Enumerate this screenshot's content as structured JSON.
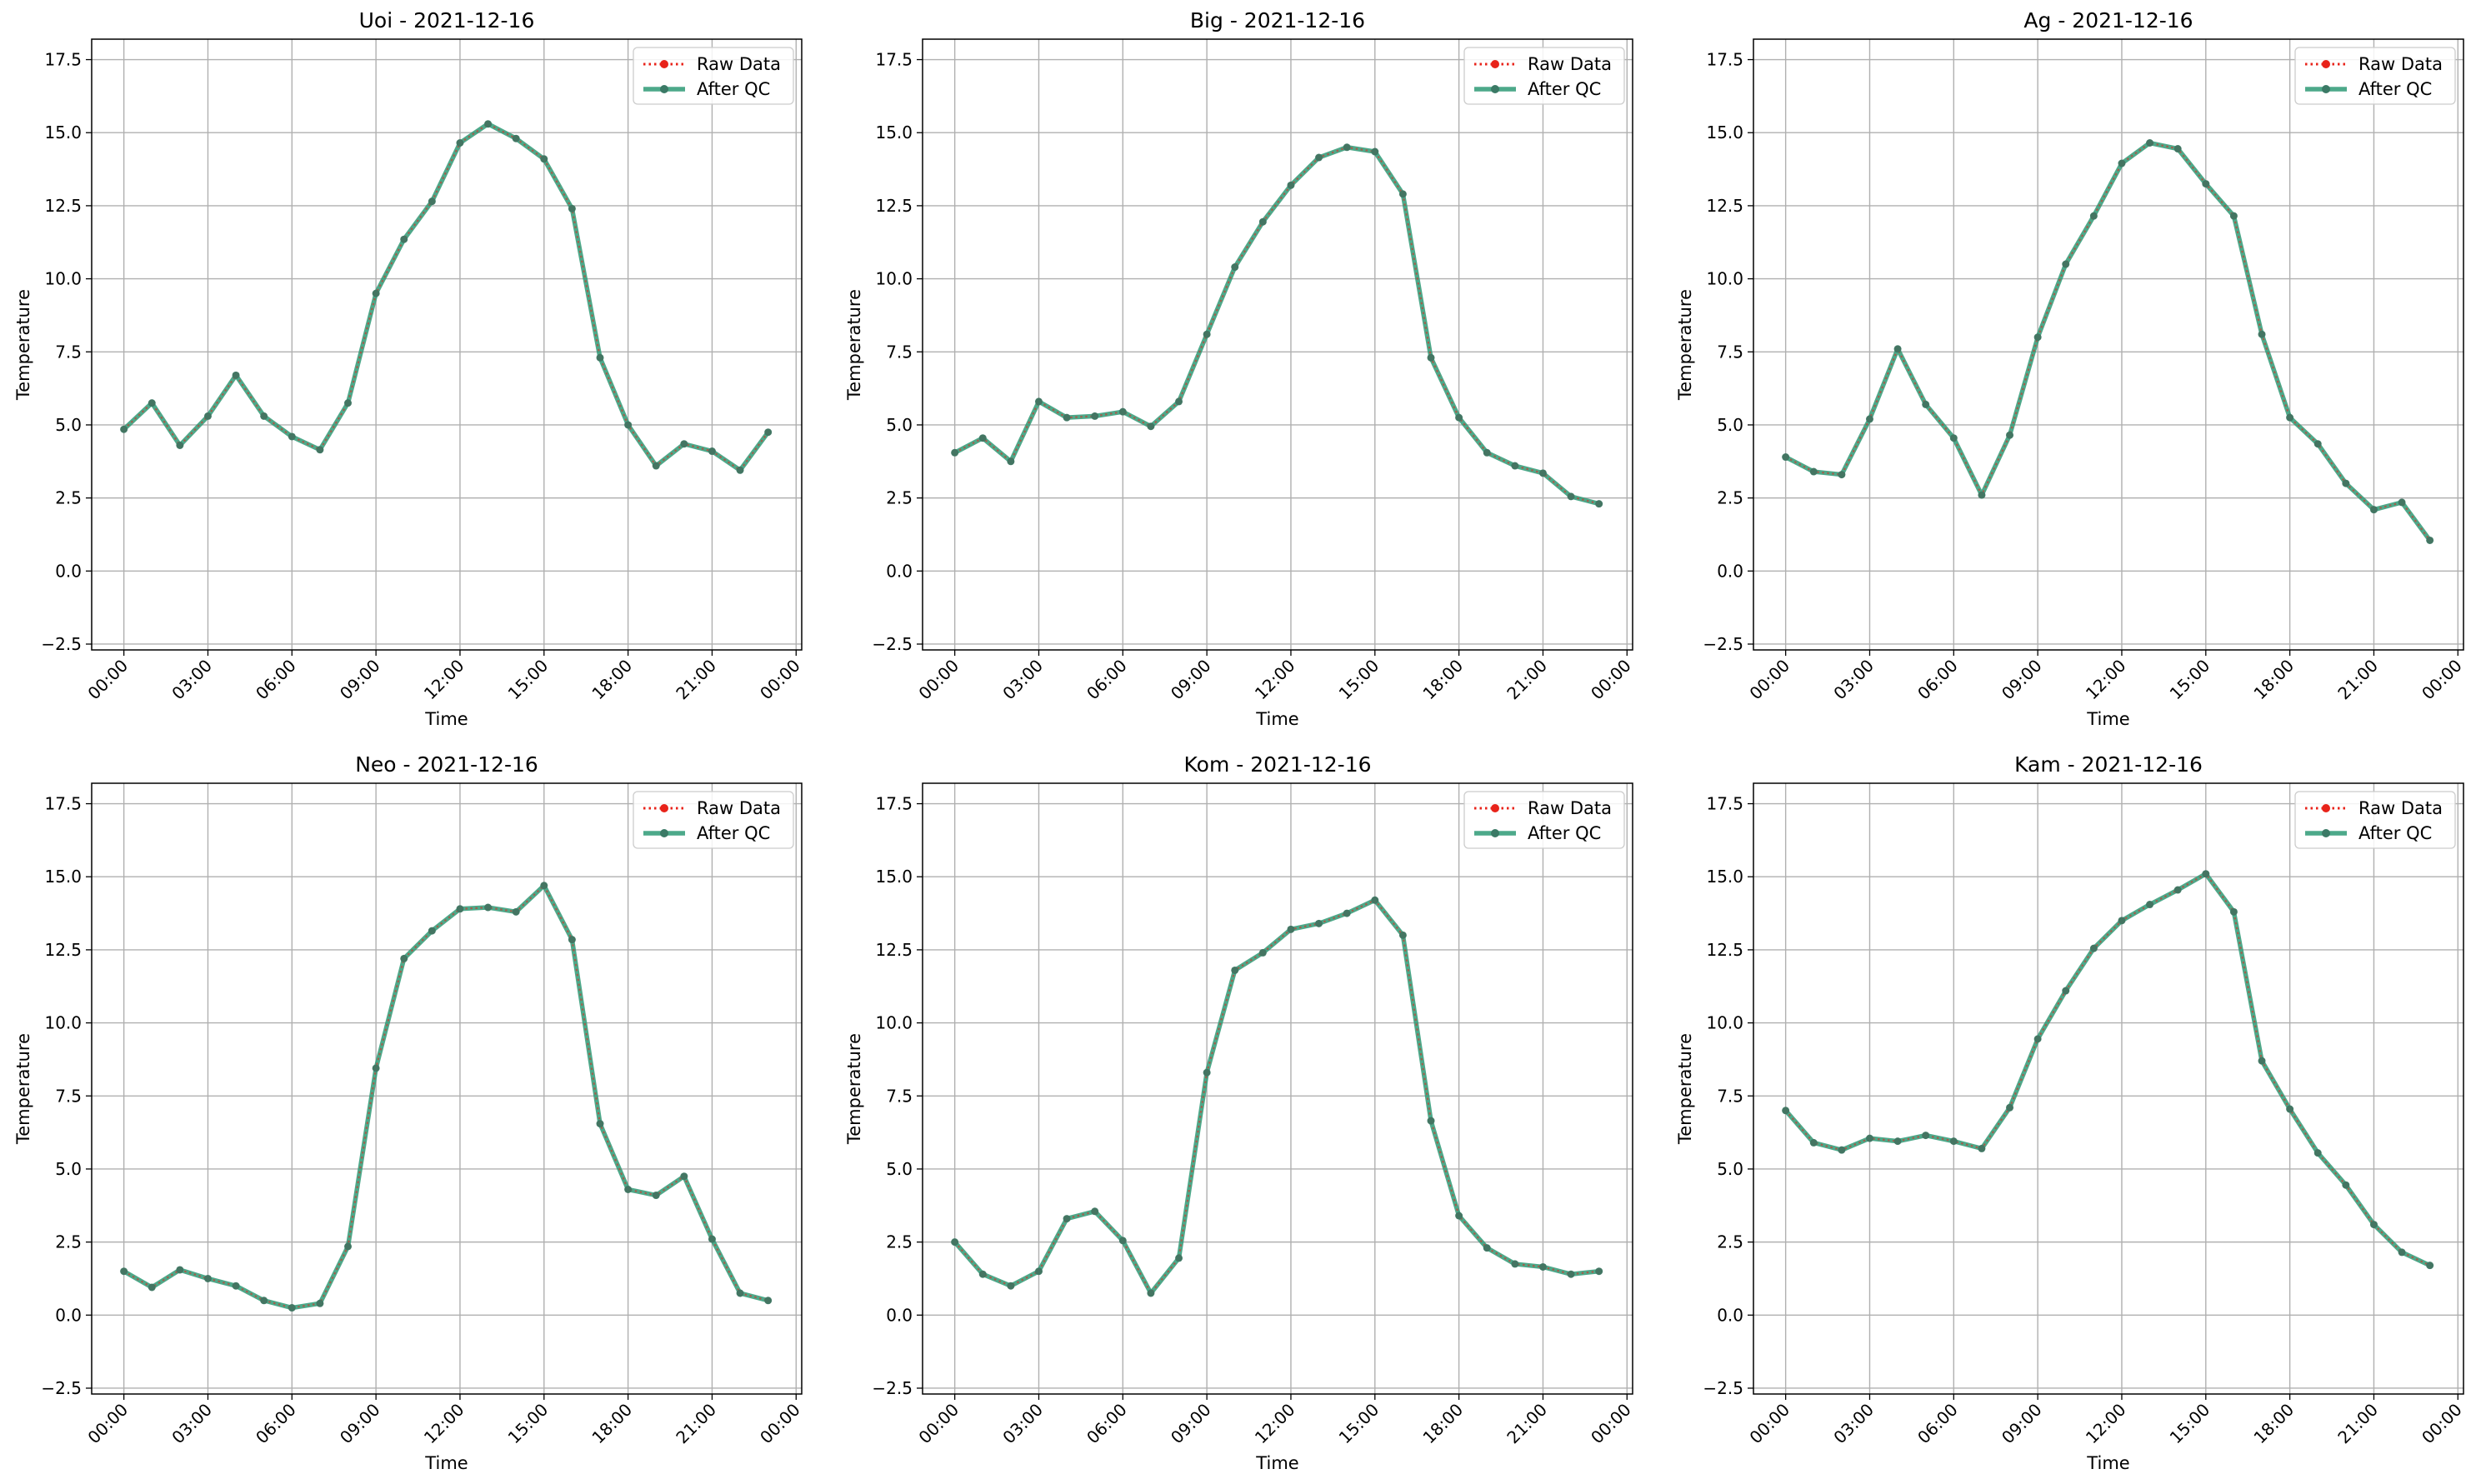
{
  "legend": {
    "raw": "Raw Data",
    "qc": "After QC"
  },
  "colors": {
    "raw": "#e8231a",
    "qc": "#2e9a76",
    "grid": "#b0b0b0"
  },
  "chart_data": [
    {
      "type": "line",
      "title": "Uoi - 2021-12-16",
      "xlabel": "Time",
      "ylabel": "Temperature",
      "ylim": [
        -2.5,
        17.5
      ],
      "xlim": [
        "00:00",
        "00:00"
      ],
      "xticks": [
        "00:00",
        "03:00",
        "06:00",
        "09:00",
        "12:00",
        "15:00",
        "18:00",
        "21:00",
        "00:00"
      ],
      "yticks": [
        -2.5,
        0.0,
        2.5,
        5.0,
        7.5,
        10.0,
        12.5,
        15.0,
        17.5
      ],
      "x": [
        "00:00",
        "01:00",
        "02:00",
        "03:00",
        "04:00",
        "05:00",
        "06:00",
        "07:00",
        "08:00",
        "09:00",
        "10:00",
        "11:00",
        "12:00",
        "13:00",
        "14:00",
        "15:00",
        "16:00",
        "17:00",
        "18:00",
        "19:00",
        "20:00",
        "21:00",
        "22:00",
        "23:00"
      ],
      "series": [
        {
          "name": "Raw Data",
          "values": [
            4.85,
            5.75,
            4.3,
            5.3,
            6.7,
            5.3,
            4.6,
            4.15,
            5.75,
            9.5,
            11.35,
            12.65,
            14.65,
            15.3,
            14.8,
            14.1,
            12.4,
            7.3,
            5.0,
            3.6,
            4.35,
            4.1,
            3.45,
            4.75
          ]
        },
        {
          "name": "After QC",
          "values": [
            4.85,
            5.75,
            4.3,
            5.3,
            6.7,
            5.3,
            4.6,
            4.15,
            5.75,
            9.5,
            11.35,
            12.65,
            14.65,
            15.3,
            14.8,
            14.1,
            12.4,
            7.3,
            5.0,
            3.6,
            4.35,
            4.1,
            3.45,
            4.75
          ]
        }
      ],
      "legend_position": "upper right",
      "grid": true
    },
    {
      "type": "line",
      "title": "Big - 2021-12-16",
      "xlabel": "Time",
      "ylabel": "Temperature",
      "ylim": [
        -2.5,
        17.5
      ],
      "xlim": [
        "00:00",
        "00:00"
      ],
      "xticks": [
        "00:00",
        "03:00",
        "06:00",
        "09:00",
        "12:00",
        "15:00",
        "18:00",
        "21:00",
        "00:00"
      ],
      "yticks": [
        -2.5,
        0.0,
        2.5,
        5.0,
        7.5,
        10.0,
        12.5,
        15.0,
        17.5
      ],
      "x": [
        "00:00",
        "01:00",
        "02:00",
        "03:00",
        "04:00",
        "05:00",
        "06:00",
        "07:00",
        "08:00",
        "09:00",
        "10:00",
        "11:00",
        "12:00",
        "13:00",
        "14:00",
        "15:00",
        "16:00",
        "17:00",
        "18:00",
        "19:00",
        "20:00",
        "21:00",
        "22:00",
        "23:00"
      ],
      "series": [
        {
          "name": "Raw Data",
          "values": [
            4.05,
            4.55,
            3.75,
            5.8,
            5.25,
            5.3,
            5.45,
            4.95,
            5.8,
            8.1,
            10.4,
            11.95,
            13.2,
            14.15,
            14.5,
            14.35,
            12.9,
            7.3,
            5.25,
            4.05,
            3.6,
            3.35,
            2.55,
            2.3
          ]
        },
        {
          "name": "After QC",
          "values": [
            4.05,
            4.55,
            3.75,
            5.8,
            5.25,
            5.3,
            5.45,
            4.95,
            5.8,
            8.1,
            10.4,
            11.95,
            13.2,
            14.15,
            14.5,
            14.35,
            12.9,
            7.3,
            5.25,
            4.05,
            3.6,
            3.35,
            2.55,
            2.3
          ]
        }
      ],
      "legend_position": "upper right",
      "grid": true
    },
    {
      "type": "line",
      "title": "Ag - 2021-12-16",
      "xlabel": "Time",
      "ylabel": "Temperature",
      "ylim": [
        -2.5,
        17.5
      ],
      "xlim": [
        "00:00",
        "00:00"
      ],
      "xticks": [
        "00:00",
        "03:00",
        "06:00",
        "09:00",
        "12:00",
        "15:00",
        "18:00",
        "21:00",
        "00:00"
      ],
      "yticks": [
        -2.5,
        0.0,
        2.5,
        5.0,
        7.5,
        10.0,
        12.5,
        15.0,
        17.5
      ],
      "x": [
        "00:00",
        "01:00",
        "02:00",
        "03:00",
        "04:00",
        "05:00",
        "06:00",
        "07:00",
        "08:00",
        "09:00",
        "10:00",
        "11:00",
        "12:00",
        "13:00",
        "14:00",
        "15:00",
        "16:00",
        "17:00",
        "18:00",
        "19:00",
        "20:00",
        "21:00",
        "22:00",
        "23:00"
      ],
      "series": [
        {
          "name": "Raw Data",
          "values": [
            3.9,
            3.4,
            3.3,
            5.2,
            7.6,
            5.7,
            4.55,
            2.6,
            4.65,
            8.0,
            10.5,
            12.15,
            13.95,
            14.65,
            14.45,
            13.25,
            12.15,
            8.1,
            5.25,
            4.35,
            3.0,
            2.1,
            2.35,
            1.05
          ]
        },
        {
          "name": "After QC",
          "values": [
            3.9,
            3.4,
            3.3,
            5.2,
            7.6,
            5.7,
            4.55,
            2.6,
            4.65,
            8.0,
            10.5,
            12.15,
            13.95,
            14.65,
            14.45,
            13.25,
            12.15,
            8.1,
            5.25,
            4.35,
            3.0,
            2.1,
            2.35,
            1.05
          ]
        }
      ],
      "legend_position": "upper right",
      "grid": true
    },
    {
      "type": "line",
      "title": "Neo - 2021-12-16",
      "xlabel": "Time",
      "ylabel": "Temperature",
      "ylim": [
        -2.5,
        17.5
      ],
      "xlim": [
        "00:00",
        "00:00"
      ],
      "xticks": [
        "00:00",
        "03:00",
        "06:00",
        "09:00",
        "12:00",
        "15:00",
        "18:00",
        "21:00",
        "00:00"
      ],
      "yticks": [
        -2.5,
        0.0,
        2.5,
        5.0,
        7.5,
        10.0,
        12.5,
        15.0,
        17.5
      ],
      "x": [
        "00:00",
        "01:00",
        "02:00",
        "03:00",
        "04:00",
        "05:00",
        "06:00",
        "07:00",
        "08:00",
        "09:00",
        "10:00",
        "11:00",
        "12:00",
        "13:00",
        "14:00",
        "15:00",
        "16:00",
        "17:00",
        "18:00",
        "19:00",
        "20:00",
        "21:00",
        "22:00",
        "23:00"
      ],
      "series": [
        {
          "name": "Raw Data",
          "values": [
            1.5,
            0.95,
            1.55,
            1.25,
            1.0,
            0.5,
            0.25,
            0.4,
            2.35,
            8.45,
            12.2,
            13.15,
            13.9,
            13.95,
            13.8,
            14.7,
            12.85,
            6.55,
            4.3,
            4.1,
            4.75,
            2.6,
            0.75,
            0.5
          ]
        },
        {
          "name": "After QC",
          "values": [
            1.5,
            0.95,
            1.55,
            1.25,
            1.0,
            0.5,
            0.25,
            0.4,
            2.35,
            8.45,
            12.2,
            13.15,
            13.9,
            13.95,
            13.8,
            14.7,
            12.85,
            6.55,
            4.3,
            4.1,
            4.75,
            2.6,
            0.75,
            0.5
          ]
        }
      ],
      "legend_position": "upper right",
      "grid": true
    },
    {
      "type": "line",
      "title": "Kom - 2021-12-16",
      "xlabel": "Time",
      "ylabel": "Temperature",
      "ylim": [
        -2.5,
        17.5
      ],
      "xlim": [
        "00:00",
        "00:00"
      ],
      "xticks": [
        "00:00",
        "03:00",
        "06:00",
        "09:00",
        "12:00",
        "15:00",
        "18:00",
        "21:00",
        "00:00"
      ],
      "yticks": [
        -2.5,
        0.0,
        2.5,
        5.0,
        7.5,
        10.0,
        12.5,
        15.0,
        17.5
      ],
      "x": [
        "00:00",
        "01:00",
        "02:00",
        "03:00",
        "04:00",
        "05:00",
        "06:00",
        "07:00",
        "08:00",
        "09:00",
        "10:00",
        "11:00",
        "12:00",
        "13:00",
        "14:00",
        "15:00",
        "16:00",
        "17:00",
        "18:00",
        "19:00",
        "20:00",
        "21:00",
        "22:00",
        "23:00"
      ],
      "series": [
        {
          "name": "Raw Data",
          "values": [
            2.5,
            1.4,
            1.0,
            1.5,
            3.3,
            3.55,
            2.55,
            0.75,
            1.95,
            8.3,
            11.8,
            12.4,
            13.2,
            13.4,
            13.75,
            14.2,
            13.0,
            6.65,
            3.4,
            2.3,
            1.75,
            1.65,
            1.4,
            1.5
          ]
        },
        {
          "name": "After QC",
          "values": [
            2.5,
            1.4,
            1.0,
            1.5,
            3.3,
            3.55,
            2.55,
            0.75,
            1.95,
            8.3,
            11.8,
            12.4,
            13.2,
            13.4,
            13.75,
            14.2,
            13.0,
            6.65,
            3.4,
            2.3,
            1.75,
            1.65,
            1.4,
            1.5
          ]
        }
      ],
      "legend_position": "upper right",
      "grid": true
    },
    {
      "type": "line",
      "title": "Kam - 2021-12-16",
      "xlabel": "Time",
      "ylabel": "Temperature",
      "ylim": [
        -2.5,
        17.5
      ],
      "xlim": [
        "00:00",
        "00:00"
      ],
      "xticks": [
        "00:00",
        "03:00",
        "06:00",
        "09:00",
        "12:00",
        "15:00",
        "18:00",
        "21:00",
        "00:00"
      ],
      "yticks": [
        -2.5,
        0.0,
        2.5,
        5.0,
        7.5,
        10.0,
        12.5,
        15.0,
        17.5
      ],
      "x": [
        "00:00",
        "01:00",
        "02:00",
        "03:00",
        "04:00",
        "05:00",
        "06:00",
        "07:00",
        "08:00",
        "09:00",
        "10:00",
        "11:00",
        "12:00",
        "13:00",
        "14:00",
        "15:00",
        "16:00",
        "17:00",
        "18:00",
        "19:00",
        "20:00",
        "21:00",
        "22:00",
        "23:00"
      ],
      "series": [
        {
          "name": "Raw Data",
          "values": [
            7.0,
            5.9,
            5.65,
            6.05,
            5.95,
            6.15,
            5.95,
            5.7,
            7.1,
            9.45,
            11.1,
            12.55,
            13.5,
            14.05,
            14.55,
            15.1,
            13.8,
            8.7,
            7.05,
            5.55,
            4.45,
            3.1,
            2.15,
            1.7
          ]
        },
        {
          "name": "After QC",
          "values": [
            7.0,
            5.9,
            5.65,
            6.05,
            5.95,
            6.15,
            5.95,
            5.7,
            7.1,
            9.45,
            11.1,
            12.55,
            13.5,
            14.05,
            14.55,
            15.1,
            13.8,
            8.7,
            7.05,
            5.55,
            4.45,
            3.1,
            2.15,
            1.7
          ]
        }
      ],
      "legend_position": "upper right",
      "grid": true
    }
  ]
}
